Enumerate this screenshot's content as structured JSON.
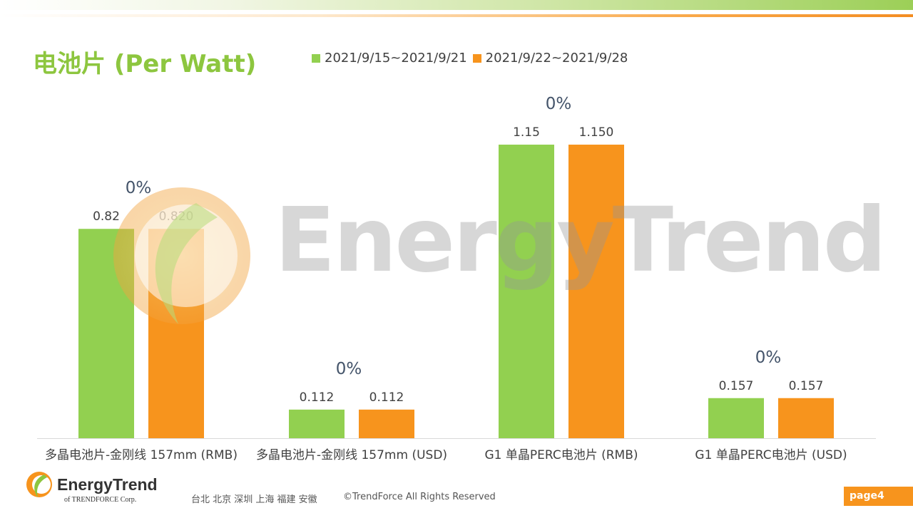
{
  "title": "电池片 (Per Watt)",
  "legend": [
    {
      "label": "2021/9/15~2021/9/21",
      "color": "#92d050"
    },
    {
      "label": "2021/9/22~2021/9/28",
      "color": "#f7941d"
    }
  ],
  "chart_data": {
    "type": "bar",
    "categories": [
      "多晶电池片-金刚线 157mm (RMB)",
      "多晶电池片-金刚线 157mm (USD)",
      "G1 单晶PERC电池片 (RMB)",
      "G1 单晶PERC电池片  (USD)"
    ],
    "series": [
      {
        "name": "2021/9/15~2021/9/21",
        "color": "#92d050",
        "values": [
          0.82,
          0.112,
          1.15,
          0.157
        ],
        "labels": [
          "0.82",
          "0.112",
          "1.15",
          "0.157"
        ]
      },
      {
        "name": "2021/9/22~2021/9/28",
        "color": "#f7941d",
        "values": [
          0.82,
          0.112,
          1.15,
          0.157
        ],
        "labels": [
          "0.820",
          "0.112",
          "1.150",
          "0.157"
        ]
      }
    ],
    "change_labels": [
      "0%",
      "0%",
      "0%",
      "0%"
    ],
    "ylim": [
      0,
      1.15
    ],
    "grid": false,
    "legend_position": "top"
  },
  "watermark": {
    "text": "EnergyTrend"
  },
  "footer": {
    "logo_name": "EnergyTrend",
    "logo_sub": "of TRENDFORCE Corp.",
    "cities": "台北  北京  深圳  上海  福建  安徽",
    "copyright": "©TrendForce All Rights Reserved",
    "page": "page4"
  },
  "colors": {
    "accent_green": "#8dc63f",
    "accent_orange": "#f7941d"
  }
}
